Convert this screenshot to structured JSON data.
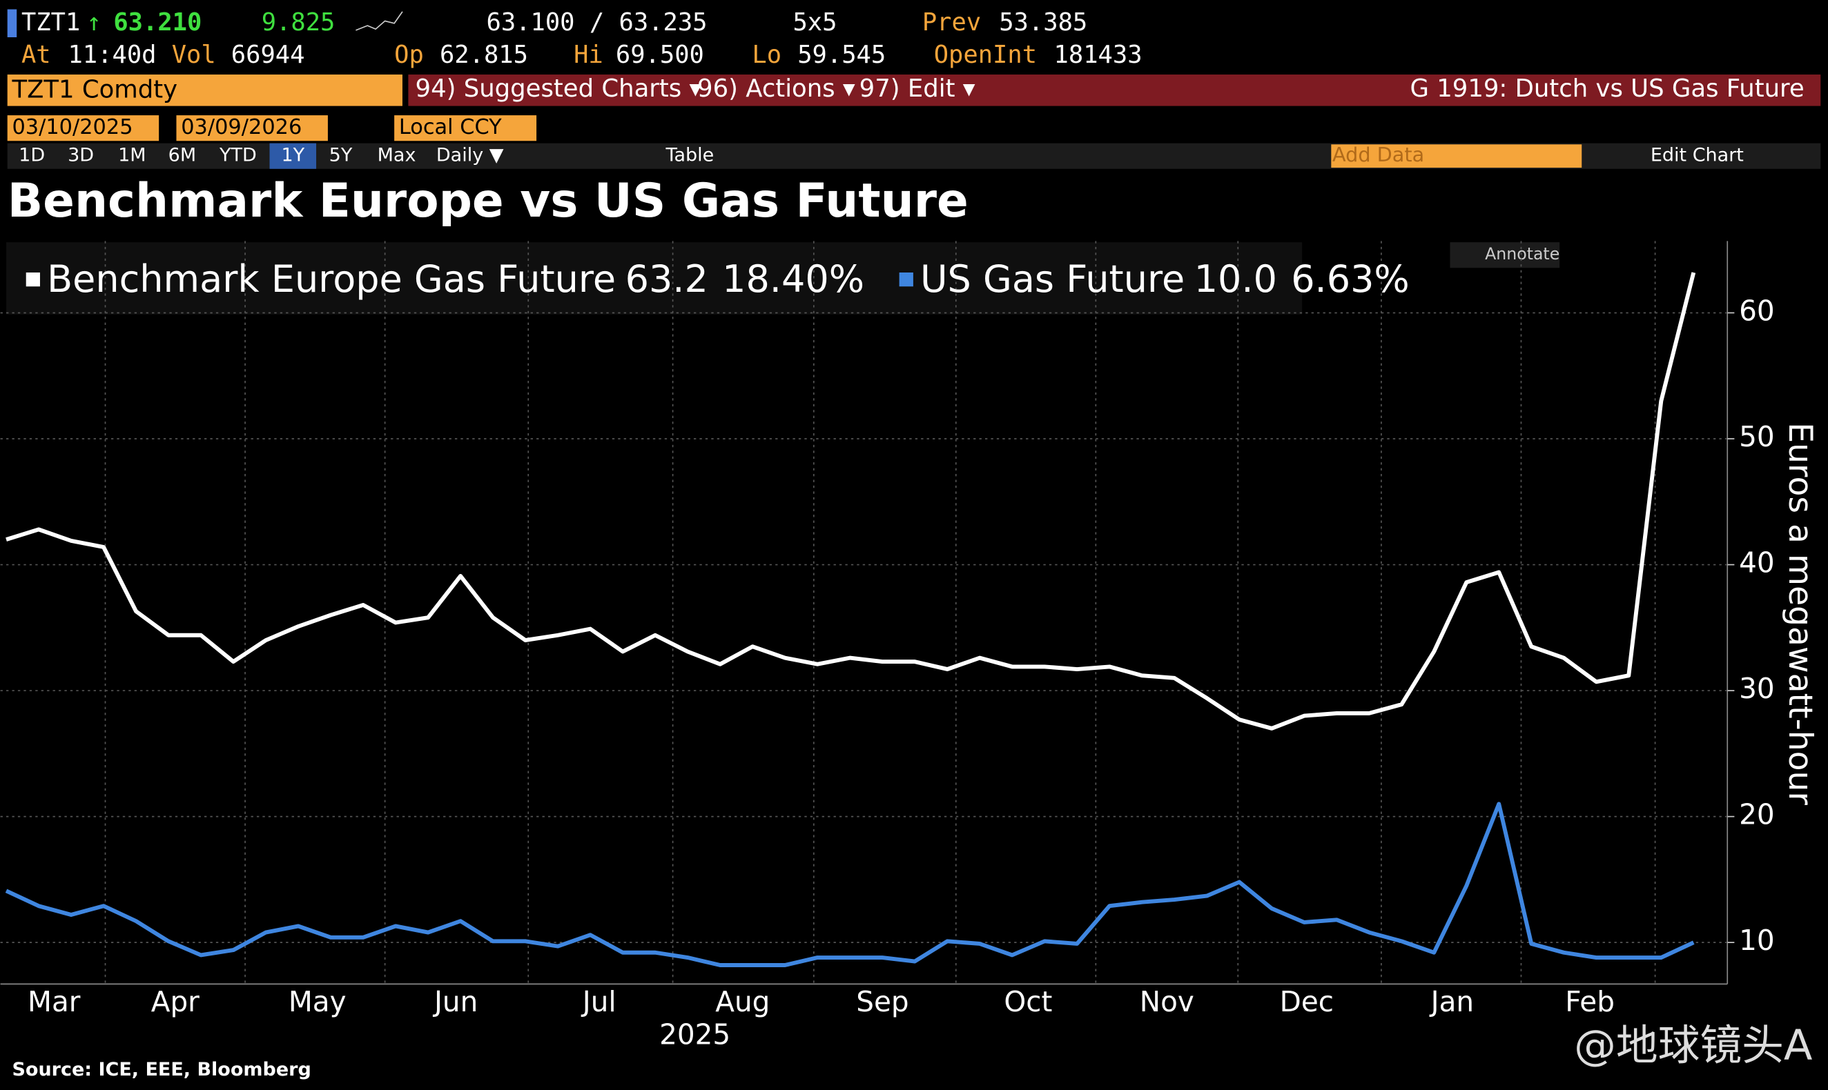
{
  "header": {
    "ticker": "TZT1",
    "arrow": "↑",
    "last": "63.210",
    "change": "9.825",
    "bid_ask": "63.100 / 63.235",
    "size": "5x5",
    "prev_label": "Prev",
    "prev": "53.385",
    "at_label": "At",
    "time": "11:40d",
    "vol_label": "Vol",
    "vol": "66944",
    "op_label": "Op",
    "op": "62.815",
    "hi_label": "Hi",
    "hi": "69.500",
    "lo_label": "Lo",
    "lo": "59.545",
    "oi_label": "OpenInt",
    "oi": "181433",
    "security": "TZT1 Comdty",
    "menu": [
      "94) Suggested Charts ▾",
      "96) Actions ▾",
      "97) Edit ▾"
    ],
    "page_title": "G 1919: Dutch vs US Gas Future",
    "start_date": "03/10/2025",
    "end_date": "03/09/2026",
    "currency": "Local CCY",
    "periods": [
      "1D",
      "3D",
      "1M",
      "6M",
      "YTD",
      "1Y",
      "5Y",
      "Max"
    ],
    "selected_period": "1Y",
    "frequency": "Daily ▼",
    "table": "Table",
    "add_data": "Add Data",
    "edit_chart": "Edit Chart",
    "annotate": "Annotate"
  },
  "chart_data": {
    "type": "line",
    "title": "Benchmark Europe vs US Gas Future",
    "y_label": "Euros a megawatt-hour",
    "year_label": "2025",
    "source": "Source: ICE, EEE, Bloomberg",
    "watermark": "@地球镜头A",
    "month_labels": [
      "Mar",
      "Apr",
      "May",
      "Jun",
      "Jul",
      "Aug",
      "Sep",
      "Oct",
      "Nov",
      "Dec",
      "Jan",
      "Feb"
    ],
    "ylim": [
      6.7,
      65.7
    ],
    "yticks": [
      10,
      20,
      30,
      40,
      50,
      60
    ],
    "grid": true,
    "series": [
      {
        "name": "Benchmark Europe Gas Future",
        "last": "63.2",
        "pct": "18.40%",
        "color": "#ffffff",
        "values": [
          42,
          42.8,
          41.9,
          41.4,
          36.3,
          34.4,
          34.4,
          32.3,
          34,
          35.1,
          36,
          36.8,
          35.4,
          35.8,
          39.1,
          35.8,
          34,
          34.4,
          34.9,
          33.1,
          34.4,
          33.1,
          32.1,
          33.5,
          32.6,
          32.1,
          32.6,
          32.3,
          32.3,
          31.7,
          32.6,
          31.9,
          31.9,
          31.7,
          31.9,
          31.2,
          31,
          29.4,
          27.7,
          27,
          28,
          28.2,
          28.2,
          28.9,
          33.1,
          38.6,
          39.4,
          33.5,
          32.6,
          30.7,
          31.2,
          53,
          63.2
        ]
      },
      {
        "name": "US Gas Future",
        "last": "10.0",
        "pct": "6.63%",
        "color": "#3f86e0",
        "values": [
          14.1,
          12.9,
          12.2,
          12.9,
          11.7,
          10.1,
          9,
          9.4,
          10.8,
          11.3,
          10.4,
          10.4,
          11.3,
          10.8,
          11.7,
          10.1,
          10.1,
          9.7,
          10.6,
          9.2,
          9.2,
          8.8,
          8.2,
          8.2,
          8.2,
          8.8,
          8.8,
          8.8,
          8.5,
          10.1,
          9.9,
          9,
          10.1,
          9.9,
          12.9,
          13.2,
          13.4,
          13.7,
          14.8,
          12.7,
          11.6,
          11.8,
          10.8,
          10.1,
          9.2,
          14.5,
          21,
          9.9,
          9.2,
          8.8,
          8.8,
          8.8,
          10
        ]
      }
    ]
  }
}
